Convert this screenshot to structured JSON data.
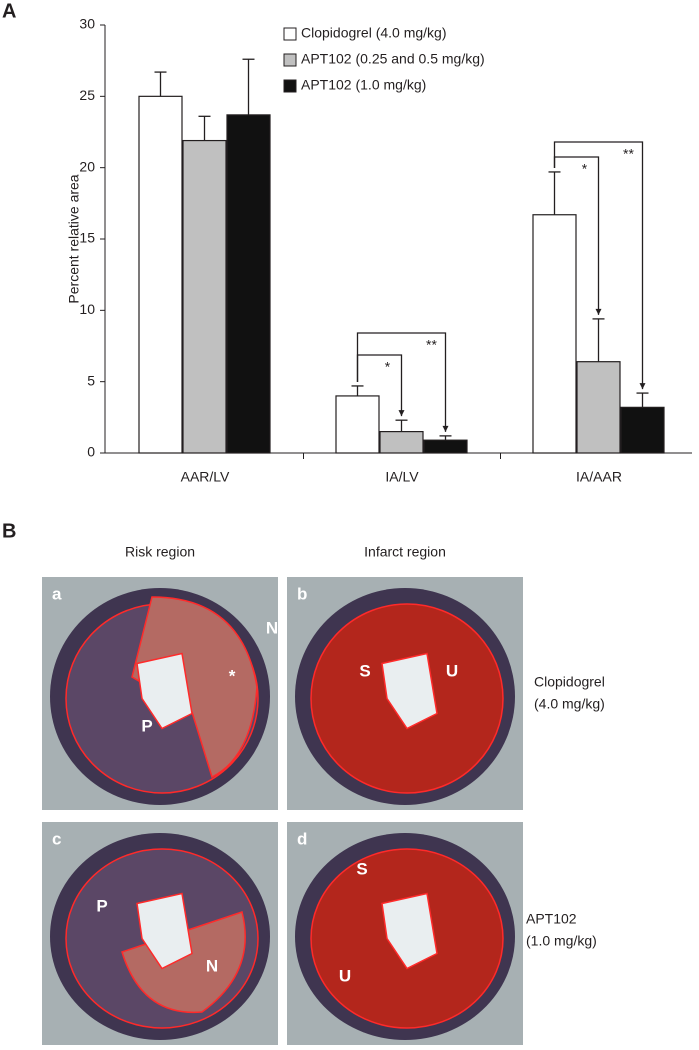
{
  "panel_a": {
    "label": "A"
  },
  "chart_data": {
    "type": "bar",
    "categories": [
      "AAR/LV",
      "IA/LV",
      "IA/AAR"
    ],
    "series": [
      {
        "name": "Clopidogrel (4.0 mg/kg)",
        "color": "#ffffff",
        "values": [
          25,
          4.0,
          16.7
        ],
        "errors": [
          1.7,
          0.7,
          3.0
        ]
      },
      {
        "name": "APT102 (0.25 and 0.5 mg/kg)",
        "color": "#c0c0c0",
        "values": [
          21.9,
          1.5,
          6.4
        ],
        "errors": [
          1.7,
          0.8,
          3.0
        ]
      },
      {
        "name": "APT102 (1.0 mg/kg)",
        "color": "#111111",
        "values": [
          23.7,
          0.9,
          3.2
        ],
        "errors": [
          3.9,
          0.3,
          1.0
        ]
      }
    ],
    "y_label": "Percent relative area",
    "ylim": [
      0,
      30
    ],
    "yticks": [
      0,
      5,
      10,
      15,
      20,
      25,
      30
    ],
    "annotations": [
      "*",
      "**",
      "*",
      "**"
    ]
  },
  "panel_b": {
    "label": "B",
    "columns": [
      "Risk region",
      "Infarct region"
    ],
    "images": [
      {
        "label": "a",
        "marks": [
          "N",
          "*",
          "P"
        ]
      },
      {
        "label": "b",
        "marks": [
          "S",
          "U"
        ]
      },
      {
        "label": "c",
        "marks": [
          "P",
          "N"
        ]
      },
      {
        "label": "d",
        "marks": [
          "S",
          "U"
        ]
      }
    ],
    "rows": [
      [
        "Clopidogrel",
        "(4.0 mg/kg)"
      ],
      [
        "APT102",
        "(1.0 mg/kg)"
      ]
    ]
  }
}
